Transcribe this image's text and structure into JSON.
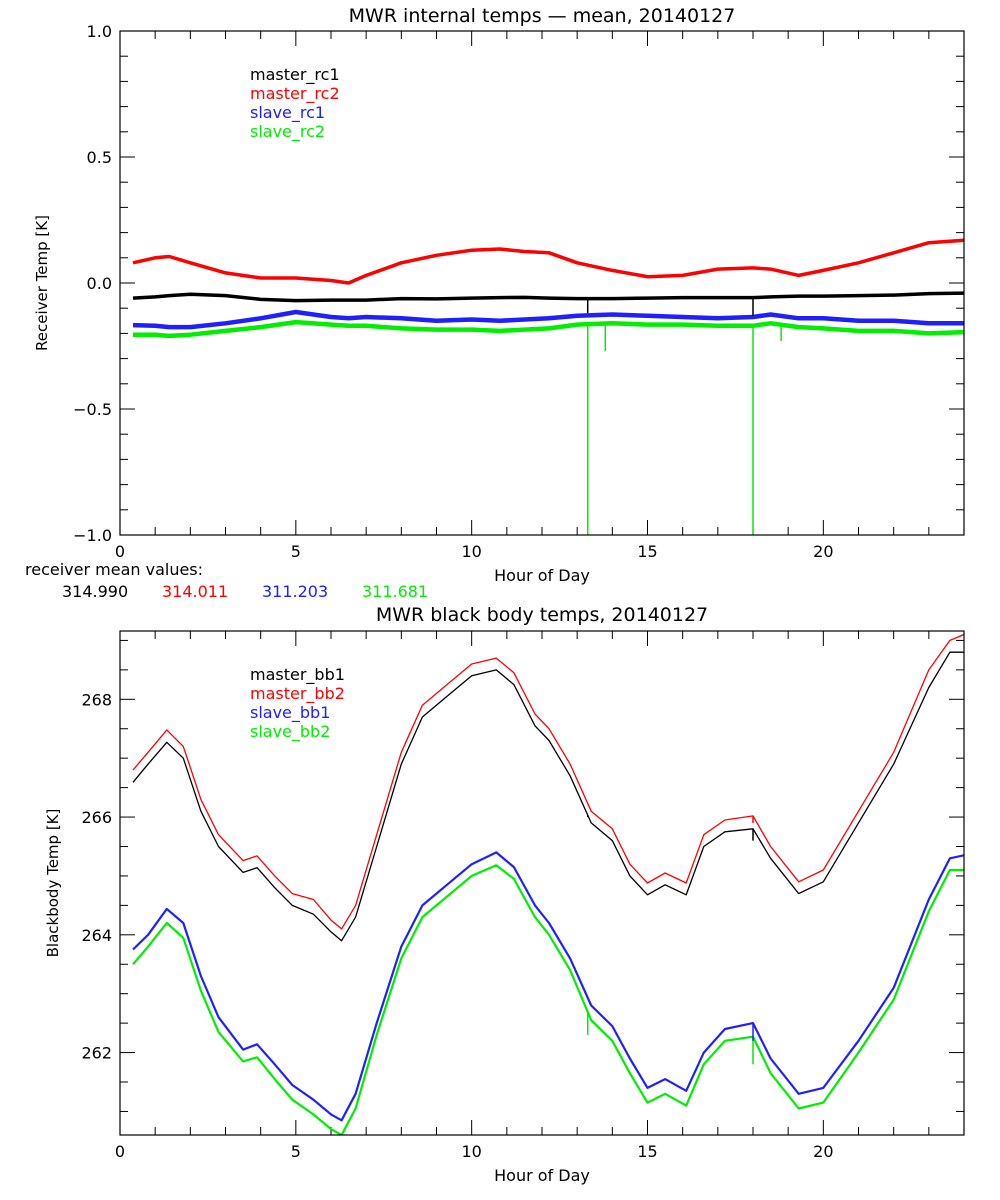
{
  "chart_data": [
    {
      "type": "line",
      "title": "MWR internal temps — mean, 20140127",
      "xlabel": "Hour of Day",
      "ylabel": "Receiver Temp [K]",
      "xlim": [
        0,
        24
      ],
      "ylim": [
        -1.0,
        1.0
      ],
      "xticks": [
        0,
        5,
        10,
        15,
        20
      ],
      "xtick_labels": [
        "0",
        "5",
        "10",
        "15",
        "20"
      ],
      "yticks": [
        -1.0,
        -0.5,
        0.0,
        0.5,
        1.0
      ],
      "ytick_labels": [
        "−1.0",
        "−0.5",
        "0.0",
        "0.5",
        "1.0"
      ],
      "grid": false,
      "legend_position": "top-left",
      "x": [
        0.37,
        1.0,
        1.4,
        2.0,
        3.0,
        4.0,
        5.0,
        6.0,
        6.5,
        7.0,
        8.0,
        9.0,
        10.0,
        10.8,
        11.5,
        12.2,
        13.0,
        14.0,
        15.0,
        16.0,
        17.0,
        18.0,
        18.5,
        19.3,
        20.0,
        21.0,
        22.0,
        23.0,
        24.0
      ],
      "series": [
        {
          "name": "master_rc1",
          "color": "#000000",
          "values": [
            -0.06,
            -0.055,
            -0.05,
            -0.045,
            -0.05,
            -0.065,
            -0.07,
            -0.068,
            -0.068,
            -0.068,
            -0.062,
            -0.063,
            -0.06,
            -0.058,
            -0.057,
            -0.06,
            -0.062,
            -0.062,
            -0.06,
            -0.058,
            -0.058,
            -0.058,
            -0.055,
            -0.052,
            -0.052,
            -0.05,
            -0.048,
            -0.042,
            -0.04
          ]
        },
        {
          "name": "master_rc2",
          "color": "#ff0000",
          "values": [
            0.08,
            0.1,
            0.105,
            0.08,
            0.04,
            0.02,
            0.02,
            0.01,
            0.0,
            0.03,
            0.08,
            0.11,
            0.13,
            0.135,
            0.125,
            0.12,
            0.08,
            0.05,
            0.025,
            0.03,
            0.055,
            0.06,
            0.055,
            0.03,
            0.05,
            0.08,
            0.12,
            0.16,
            0.17
          ]
        },
        {
          "name": "slave_rc1",
          "color": "#2020ff",
          "values": [
            -0.167,
            -0.17,
            -0.175,
            -0.175,
            -0.16,
            -0.14,
            -0.115,
            -0.135,
            -0.14,
            -0.135,
            -0.14,
            -0.15,
            -0.145,
            -0.15,
            -0.145,
            -0.14,
            -0.13,
            -0.125,
            -0.13,
            -0.135,
            -0.14,
            -0.135,
            -0.125,
            -0.14,
            -0.14,
            -0.15,
            -0.15,
            -0.16,
            -0.16
          ]
        },
        {
          "name": "slave_rc2",
          "color": "#00ee00",
          "values": [
            -0.205,
            -0.205,
            -0.21,
            -0.205,
            -0.19,
            -0.175,
            -0.155,
            -0.165,
            -0.17,
            -0.17,
            -0.18,
            -0.185,
            -0.185,
            -0.19,
            -0.185,
            -0.18,
            -0.165,
            -0.16,
            -0.165,
            -0.165,
            -0.17,
            -0.17,
            -0.16,
            -0.175,
            -0.18,
            -0.19,
            -0.19,
            -0.2,
            -0.195
          ]
        }
      ],
      "spikes": [
        {
          "series": "slave_rc2",
          "x": 13.3,
          "to": -1.0
        },
        {
          "series": "slave_rc2",
          "x": 13.8,
          "to": -0.27
        },
        {
          "series": "slave_rc2",
          "x": 18.0,
          "to": -1.0
        },
        {
          "series": "slave_rc2",
          "x": 18.8,
          "to": -0.23
        },
        {
          "series": "master_rc1",
          "x": 13.3,
          "to": -0.12
        },
        {
          "series": "master_rc1",
          "x": 18.0,
          "to": -0.13
        }
      ],
      "annotation": {
        "label": "receiver mean values:",
        "values": [
          {
            "text": "314.990",
            "color": "#000000"
          },
          {
            "text": "314.011",
            "color": "#ff0000"
          },
          {
            "text": "311.203",
            "color": "#2020ff"
          },
          {
            "text": "311.681",
            "color": "#00ee00"
          }
        ]
      }
    },
    {
      "type": "line",
      "title": "MWR black body temps, 20140127",
      "xlabel": "Hour of Day",
      "ylabel": "Blackbody Temp [K]",
      "xlim": [
        0,
        24
      ],
      "ylim": [
        260.6,
        269.16
      ],
      "xticks": [
        0,
        5,
        10,
        15,
        20
      ],
      "xtick_labels": [
        "0",
        "5",
        "10",
        "15",
        "20"
      ],
      "yticks": [
        262,
        264,
        266,
        268
      ],
      "ytick_labels": [
        "262",
        "264",
        "266",
        "268"
      ],
      "grid": false,
      "legend_position": "top-left",
      "x": [
        0.37,
        0.8,
        1.33,
        1.8,
        2.3,
        2.8,
        3.5,
        3.9,
        4.4,
        4.9,
        5.5,
        6.0,
        6.3,
        6.7,
        7.3,
        8.0,
        8.6,
        9.2,
        10.0,
        10.7,
        11.2,
        11.8,
        12.2,
        12.8,
        13.4,
        14.0,
        14.5,
        15.0,
        15.5,
        16.1,
        16.6,
        17.2,
        18.0,
        18.5,
        19.3,
        20.0,
        21.0,
        22.0,
        23.0,
        23.6,
        24.0
      ],
      "series": [
        {
          "name": "master_bb1",
          "color": "#000000",
          "values": [
            266.59,
            266.9,
            267.27,
            267.0,
            266.1,
            265.5,
            265.06,
            265.14,
            264.8,
            264.5,
            264.35,
            264.05,
            263.9,
            264.3,
            265.5,
            266.9,
            267.7,
            268.0,
            268.4,
            268.5,
            268.25,
            267.55,
            267.3,
            266.7,
            265.9,
            265.6,
            265.0,
            264.68,
            264.85,
            264.68,
            265.5,
            265.75,
            265.8,
            265.3,
            264.7,
            264.9,
            265.9,
            266.9,
            268.2,
            268.8,
            268.8
          ]
        },
        {
          "name": "master_bb2",
          "color": "#ff0000",
          "values": [
            266.8,
            267.1,
            267.48,
            267.2,
            266.3,
            265.7,
            265.26,
            265.34,
            265.0,
            264.7,
            264.6,
            264.25,
            264.1,
            264.5,
            265.7,
            267.1,
            267.9,
            268.2,
            268.6,
            268.7,
            268.45,
            267.75,
            267.5,
            266.9,
            266.1,
            265.8,
            265.2,
            264.88,
            265.05,
            264.88,
            265.7,
            265.95,
            266.02,
            265.5,
            264.9,
            265.1,
            266.1,
            267.1,
            268.5,
            269.0,
            269.1
          ]
        },
        {
          "name": "slave_bb1",
          "color": "#2020ff",
          "values": [
            263.75,
            264.0,
            264.44,
            264.2,
            263.3,
            262.6,
            262.05,
            262.14,
            261.8,
            261.45,
            261.2,
            260.95,
            260.85,
            261.3,
            262.5,
            263.8,
            264.5,
            264.8,
            265.2,
            265.4,
            265.15,
            264.5,
            264.2,
            263.6,
            262.8,
            262.45,
            261.9,
            261.4,
            261.55,
            261.35,
            262.0,
            262.4,
            262.5,
            261.9,
            261.3,
            261.4,
            262.2,
            263.1,
            264.6,
            265.3,
            265.35
          ]
        },
        {
          "name": "slave_bb2",
          "color": "#00ee00",
          "values": [
            263.5,
            263.8,
            264.2,
            263.95,
            263.05,
            262.35,
            261.85,
            261.92,
            261.55,
            261.2,
            260.95,
            260.7,
            260.6,
            261.05,
            262.3,
            263.6,
            264.3,
            264.6,
            265.0,
            265.18,
            264.95,
            264.3,
            264.0,
            263.4,
            262.55,
            262.2,
            261.65,
            261.15,
            261.3,
            261.1,
            261.8,
            262.2,
            262.27,
            261.65,
            261.05,
            261.15,
            262.0,
            262.9,
            264.4,
            265.1,
            265.1
          ]
        }
      ],
      "spikes": [
        {
          "series": "slave_bb2",
          "x": 13.3,
          "to": 262.3
        },
        {
          "series": "slave_bb2",
          "x": 18.0,
          "to": 261.8
        },
        {
          "series": "slave_bb1",
          "x": 18.0,
          "to": 262.2
        },
        {
          "series": "master_bb1",
          "x": 13.3,
          "to": 266.0
        },
        {
          "series": "master_bb1",
          "x": 18.0,
          "to": 265.6
        },
        {
          "series": "master_bb2",
          "x": 18.0,
          "to": 265.9
        }
      ]
    }
  ]
}
